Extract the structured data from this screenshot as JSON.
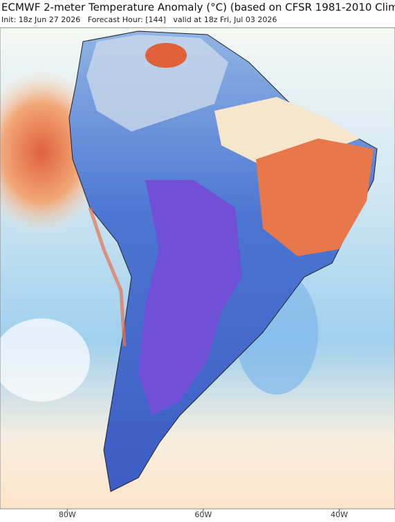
{
  "header": {
    "title": "ECMWF 2-meter Temperature Anomaly (°C) (based on CFSR 1981-2010 Clim",
    "subtitle": "Init: 18z Jun 27 2026   Forecast Hour: [144]   valid at 18z Fri, Jul 03 2026"
  },
  "axis": {
    "xlim": [
      -89.9,
      -31.8
    ],
    "xticks": [
      {
        "value": -80,
        "label": "80W"
      },
      {
        "value": -60,
        "label": "60W"
      },
      {
        "value": -40,
        "label": "40W"
      }
    ]
  }
}
